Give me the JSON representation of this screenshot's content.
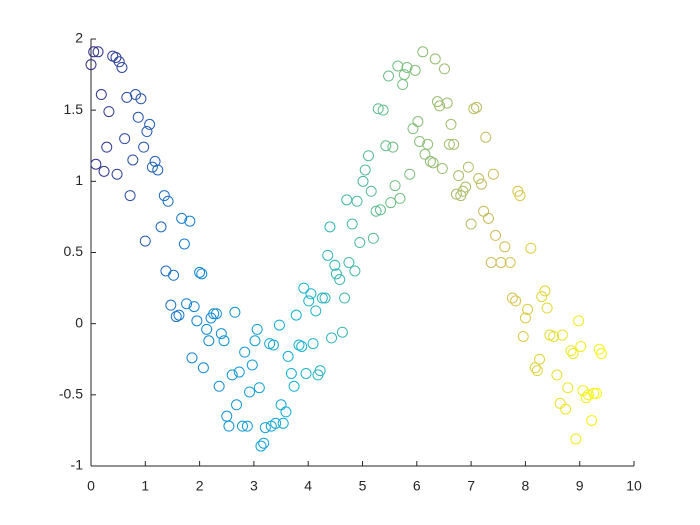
{
  "chart_data": {
    "type": "scatter",
    "colormap": "parula",
    "x": [
      0.0,
      0.05,
      0.13,
      0.09,
      0.19,
      0.24,
      0.29,
      0.33,
      0.4,
      0.46,
      0.48,
      0.52,
      0.57,
      0.62,
      0.66,
      0.72,
      0.77,
      0.82,
      0.87,
      0.92,
      0.97,
      1.0,
      1.03,
      1.08,
      1.13,
      1.18,
      1.23,
      1.29,
      1.35,
      1.38,
      1.42,
      1.47,
      1.52,
      1.57,
      1.62,
      1.67,
      1.72,
      1.76,
      1.82,
      1.86,
      1.9,
      1.95,
      2.0,
      2.04,
      2.07,
      2.13,
      2.17,
      2.21,
      2.26,
      2.31,
      2.36,
      2.4,
      2.45,
      2.5,
      2.54,
      2.6,
      2.65,
      2.68,
      2.73,
      2.79,
      2.83,
      2.88,
      2.92,
      2.97,
      3.02,
      3.06,
      3.1,
      3.13,
      3.18,
      3.21,
      3.29,
      3.32,
      3.36,
      3.4,
      3.47,
      3.5,
      3.54,
      3.59,
      3.63,
      3.69,
      3.74,
      3.78,
      3.83,
      3.88,
      3.92,
      3.96,
      4.01,
      4.05,
      4.09,
      4.14,
      4.18,
      4.22,
      4.26,
      4.31,
      4.36,
      4.4,
      4.43,
      4.49,
      4.52,
      4.58,
      4.63,
      4.67,
      4.71,
      4.75,
      4.81,
      4.86,
      4.9,
      4.95,
      5.01,
      5.05,
      5.11,
      5.16,
      5.2,
      5.25,
      5.29,
      5.33,
      5.38,
      5.43,
      5.48,
      5.52,
      5.56,
      5.6,
      5.65,
      5.69,
      5.74,
      5.77,
      5.82,
      5.87,
      5.93,
      5.97,
      6.02,
      6.05,
      6.11,
      6.15,
      6.2,
      6.25,
      6.3,
      6.34,
      6.38,
      6.42,
      6.47,
      6.51,
      6.56,
      6.6,
      6.63,
      6.68,
      6.73,
      6.77,
      6.81,
      6.85,
      6.9,
      6.95,
      7.0,
      7.05,
      7.1,
      7.14,
      7.19,
      7.23,
      7.27,
      7.32,
      7.37,
      7.41,
      7.45,
      7.55,
      7.62,
      7.72,
      7.76,
      7.82,
      7.86,
      7.9,
      7.96,
      8.0,
      8.04,
      8.1,
      8.18,
      8.22,
      8.26,
      8.3,
      8.36,
      8.4,
      8.45,
      8.52,
      8.58,
      8.64,
      8.68,
      8.74,
      8.78,
      8.84,
      8.88,
      8.93,
      8.98,
      9.02,
      9.06,
      9.12,
      9.16,
      9.22,
      9.26,
      9.31,
      9.36,
      9.4
    ],
    "y": [
      1.82,
      1.91,
      1.91,
      1.12,
      1.61,
      1.07,
      1.24,
      1.49,
      1.88,
      1.87,
      1.05,
      1.84,
      1.8,
      1.3,
      1.59,
      0.9,
      1.15,
      1.61,
      1.45,
      1.58,
      1.24,
      0.58,
      1.35,
      1.4,
      1.1,
      1.14,
      1.08,
      0.68,
      0.9,
      0.37,
      0.86,
      0.13,
      0.34,
      0.05,
      0.06,
      0.74,
      0.56,
      0.14,
      0.72,
      -0.24,
      0.12,
      0.02,
      0.36,
      0.35,
      -0.31,
      -0.04,
      -0.12,
      0.04,
      0.07,
      0.07,
      -0.44,
      -0.07,
      -0.12,
      -0.65,
      -0.72,
      -0.36,
      0.08,
      -0.57,
      -0.34,
      -0.72,
      -0.2,
      -0.72,
      -0.48,
      -0.29,
      -0.12,
      -0.04,
      -0.45,
      -0.86,
      -0.84,
      -0.73,
      -0.14,
      -0.72,
      -0.15,
      -0.7,
      -0.01,
      -0.57,
      -0.7,
      -0.62,
      -0.23,
      -0.35,
      -0.44,
      0.06,
      -0.15,
      -0.16,
      0.25,
      -0.35,
      0.16,
      0.21,
      -0.14,
      0.09,
      -0.36,
      -0.33,
      0.18,
      0.18,
      0.48,
      0.68,
      -0.1,
      0.41,
      0.35,
      0.31,
      -0.06,
      0.18,
      0.87,
      0.43,
      0.7,
      0.37,
      0.86,
      0.57,
      1.0,
      1.08,
      1.18,
      0.93,
      0.6,
      0.79,
      1.51,
      0.8,
      1.5,
      1.25,
      1.74,
      0.85,
      1.24,
      0.97,
      1.81,
      0.88,
      1.68,
      1.75,
      1.8,
      1.05,
      1.37,
      1.78,
      1.42,
      1.28,
      1.91,
      1.19,
      1.26,
      1.14,
      1.13,
      1.86,
      1.56,
      1.53,
      1.09,
      1.79,
      1.55,
      1.26,
      1.4,
      1.26,
      0.91,
      1.04,
      0.9,
      0.93,
      0.96,
      1.1,
      0.7,
      1.51,
      1.52,
      1.02,
      0.98,
      0.79,
      1.31,
      0.74,
      0.43,
      1.05,
      0.62,
      0.43,
      0.54,
      0.43,
      0.18,
      0.16,
      0.93,
      0.9,
      -0.09,
      0.04,
      0.1,
      0.53,
      -0.31,
      -0.33,
      -0.25,
      0.19,
      0.23,
      0.11,
      -0.08,
      -0.09,
      -0.36,
      -0.56,
      -0.08,
      -0.6,
      -0.45,
      -0.19,
      -0.21,
      -0.81,
      0.02,
      -0.16,
      -0.47,
      -0.52,
      -0.5,
      -0.68,
      -0.49,
      -0.49,
      -0.18,
      -0.21
    ],
    "xlim": [
      0,
      10
    ],
    "xticks": [
      0,
      1,
      2,
      3,
      4,
      5,
      6,
      7,
      8,
      9,
      10
    ],
    "ylim": [
      -1,
      2
    ],
    "yticks": [
      -1,
      -0.5,
      0,
      0.5,
      1,
      1.5,
      2
    ]
  }
}
